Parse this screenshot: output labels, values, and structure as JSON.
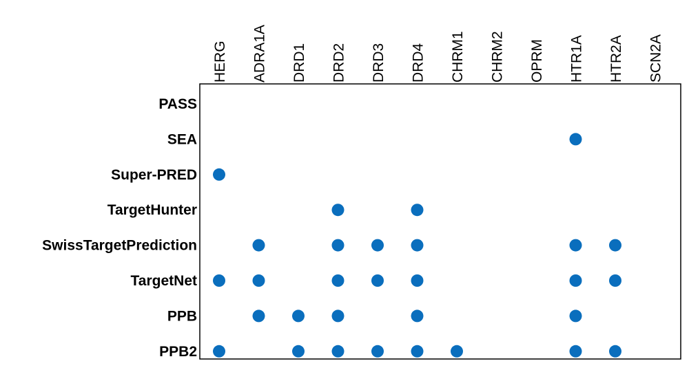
{
  "chart_data": {
    "type": "scatter",
    "title": "",
    "x_categories": [
      "HERG",
      "ADRA1A",
      "DRD1",
      "DRD2",
      "DRD3",
      "DRD4",
      "CHRM1",
      "CHRM2",
      "OPRM",
      "HTR1A",
      "HTR2A",
      "SCN2A"
    ],
    "y_categories": [
      "PASS",
      "SEA",
      "Super-PRED",
      "TargetHunter",
      "SwissTargetPrediction",
      "TargetNet",
      "PPB",
      "PPB2"
    ],
    "points": [
      {
        "x": "HTR1A",
        "y": "SEA"
      },
      {
        "x": "HERG",
        "y": "Super-PRED"
      },
      {
        "x": "DRD2",
        "y": "TargetHunter"
      },
      {
        "x": "DRD4",
        "y": "TargetHunter"
      },
      {
        "x": "ADRA1A",
        "y": "SwissTargetPrediction"
      },
      {
        "x": "DRD2",
        "y": "SwissTargetPrediction"
      },
      {
        "x": "DRD3",
        "y": "SwissTargetPrediction"
      },
      {
        "x": "DRD4",
        "y": "SwissTargetPrediction"
      },
      {
        "x": "HTR1A",
        "y": "SwissTargetPrediction"
      },
      {
        "x": "HTR2A",
        "y": "SwissTargetPrediction"
      },
      {
        "x": "HERG",
        "y": "TargetNet"
      },
      {
        "x": "ADRA1A",
        "y": "TargetNet"
      },
      {
        "x": "DRD2",
        "y": "TargetNet"
      },
      {
        "x": "DRD3",
        "y": "TargetNet"
      },
      {
        "x": "DRD4",
        "y": "TargetNet"
      },
      {
        "x": "HTR1A",
        "y": "TargetNet"
      },
      {
        "x": "HTR2A",
        "y": "TargetNet"
      },
      {
        "x": "ADRA1A",
        "y": "PPB"
      },
      {
        "x": "DRD1",
        "y": "PPB"
      },
      {
        "x": "DRD2",
        "y": "PPB"
      },
      {
        "x": "DRD4",
        "y": "PPB"
      },
      {
        "x": "HTR1A",
        "y": "PPB"
      },
      {
        "x": "HERG",
        "y": "PPB2"
      },
      {
        "x": "DRD1",
        "y": "PPB2"
      },
      {
        "x": "DRD2",
        "y": "PPB2"
      },
      {
        "x": "DRD3",
        "y": "PPB2"
      },
      {
        "x": "DRD4",
        "y": "PPB2"
      },
      {
        "x": "CHRM1",
        "y": "PPB2"
      },
      {
        "x": "HTR1A",
        "y": "PPB2"
      },
      {
        "x": "HTR2A",
        "y": "PPB2"
      }
    ],
    "marker_color": "#0a6ebd",
    "x_axis_position": "top",
    "grid": false,
    "legend": "none"
  }
}
